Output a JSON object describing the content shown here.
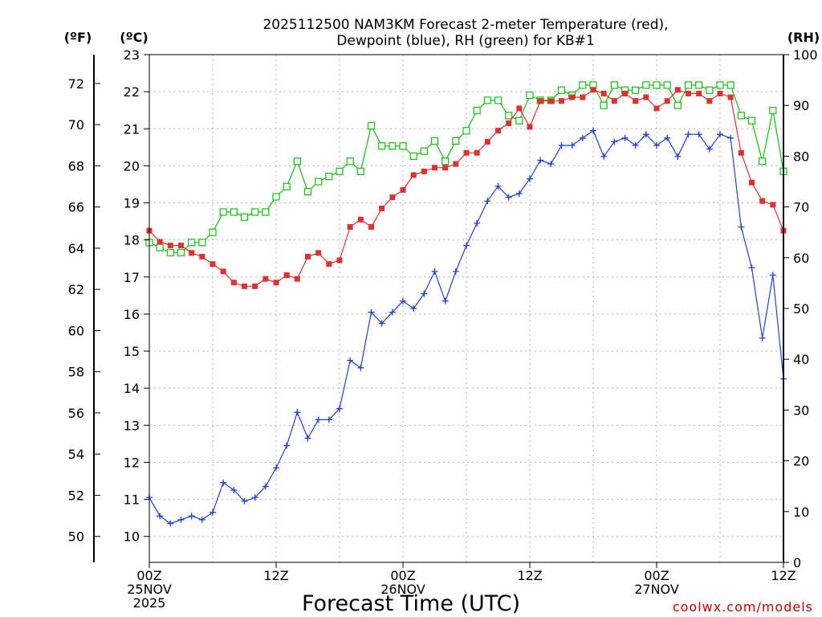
{
  "chart_data": {
    "type": "line",
    "title": "2025112500 NAM3KM Forecast 2-meter Temperature (red),",
    "subtitle": "Dewpoint (blue), RH (green) for KB#1",
    "xlabel": "Forecast Time (UTC)",
    "watermark": "coolwx.com/models",
    "left_unit_f": "(ºF)",
    "left_unit_c": "(ºC)",
    "right_unit": "(RH)",
    "x_range_hours": [
      0,
      60
    ],
    "y_range_celsius": [
      9.3,
      23
    ],
    "rh_range": [
      0,
      100
    ],
    "grid": true,
    "x_ticks": [
      {
        "h": 0,
        "lines": [
          "00Z",
          "25NOV",
          "2025"
        ]
      },
      {
        "h": 12,
        "lines": [
          "12Z"
        ]
      },
      {
        "h": 24,
        "lines": [
          "00Z",
          "26NOV"
        ]
      },
      {
        "h": 36,
        "lines": [
          "12Z"
        ]
      },
      {
        "h": 48,
        "lines": [
          "00Z",
          "27NOV"
        ]
      },
      {
        "h": 60,
        "lines": [
          "12Z"
        ]
      }
    ],
    "y_ticks_celsius": [
      10,
      11,
      12,
      13,
      14,
      15,
      16,
      17,
      18,
      19,
      20,
      21,
      22,
      23
    ],
    "y_ticks_fahrenheit": [
      50,
      52,
      54,
      56,
      58,
      60,
      62,
      64,
      66,
      68,
      70,
      72
    ],
    "y_ticks_rh": [
      0,
      10,
      20,
      30,
      40,
      50,
      60,
      70,
      80,
      90,
      100
    ],
    "colors": {
      "temperature": "#e03030",
      "dewpoint": "#2040d0",
      "rh": "#10c010",
      "axis": "#000000",
      "watermark": "#c00000"
    },
    "hours": [
      0,
      1,
      2,
      3,
      4,
      5,
      6,
      7,
      8,
      9,
      10,
      11,
      12,
      13,
      14,
      15,
      16,
      17,
      18,
      19,
      20,
      21,
      22,
      23,
      24,
      25,
      26,
      27,
      28,
      29,
      30,
      31,
      32,
      33,
      34,
      35,
      36,
      37,
      38,
      39,
      40,
      41,
      42,
      43,
      44,
      45,
      46,
      47,
      48,
      49,
      50,
      51,
      52,
      53,
      54,
      55,
      56,
      57,
      58,
      59,
      60
    ],
    "series": [
      {
        "name": "Temperature",
        "unit": "C",
        "marker": "filled-square",
        "values": [
          18.25,
          17.95,
          17.85,
          17.85,
          17.65,
          17.55,
          17.35,
          17.15,
          16.85,
          16.75,
          16.75,
          16.95,
          16.85,
          17.05,
          16.95,
          17.55,
          17.65,
          17.35,
          17.45,
          18.35,
          18.55,
          18.35,
          18.85,
          19.15,
          19.35,
          19.75,
          19.85,
          19.95,
          19.95,
          20.05,
          20.35,
          20.35,
          20.65,
          20.95,
          21.15,
          21.55,
          21.05,
          21.75,
          21.75,
          21.75,
          21.85,
          21.85,
          22.05,
          21.95,
          21.75,
          21.95,
          21.75,
          21.85,
          21.55,
          21.75,
          22.05,
          21.95,
          21.95,
          21.75,
          21.95,
          21.85,
          20.35,
          19.55,
          19.05,
          18.95,
          18.25
        ]
      },
      {
        "name": "Dewpoint",
        "unit": "C",
        "marker": "plus",
        "values": [
          11.05,
          10.55,
          10.35,
          10.45,
          10.55,
          10.45,
          10.65,
          11.45,
          11.25,
          10.95,
          11.05,
          11.35,
          11.85,
          12.45,
          13.35,
          12.65,
          13.15,
          13.15,
          13.45,
          14.75,
          14.55,
          16.05,
          15.75,
          16.05,
          16.35,
          16.15,
          16.55,
          17.15,
          16.35,
          17.15,
          17.85,
          18.45,
          19.05,
          19.45,
          19.15,
          19.25,
          19.65,
          20.15,
          20.05,
          20.55,
          20.55,
          20.75,
          20.95,
          20.25,
          20.65,
          20.75,
          20.55,
          20.85,
          20.55,
          20.75,
          20.25,
          20.85,
          20.85,
          20.45,
          20.85,
          20.75,
          18.35,
          17.25,
          15.35,
          17.05,
          14.25
        ]
      },
      {
        "name": "RH",
        "unit": "%",
        "marker": "open-square",
        "values": [
          63,
          62,
          61,
          61,
          63,
          63,
          65,
          69,
          69,
          68,
          69,
          69,
          72,
          74,
          79,
          73,
          75,
          76,
          77,
          79,
          77,
          86,
          82,
          82,
          82,
          80,
          81,
          83,
          79,
          83,
          85,
          89,
          91,
          91,
          88,
          87,
          92,
          91,
          91,
          93,
          92,
          94,
          94,
          90,
          94,
          93,
          93,
          94,
          94,
          94,
          90,
          94,
          94,
          93,
          94,
          94,
          88,
          87,
          79,
          89,
          77
        ]
      }
    ]
  }
}
